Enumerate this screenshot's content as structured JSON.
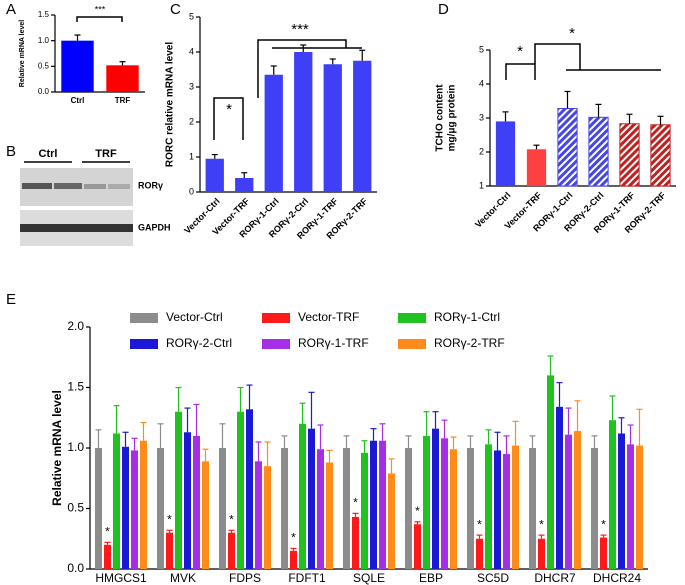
{
  "panel_labels": [
    "A",
    "B",
    "C",
    "D",
    "E"
  ],
  "blot": {
    "lanes": [
      "Ctrl",
      "TRF"
    ],
    "bands": [
      "RORγ",
      "GAPDH"
    ]
  },
  "chart_data": [
    {
      "type": "bar",
      "ylabel": "Relative mRNA level",
      "categories": [
        "Ctrl",
        "TRF"
      ],
      "values": [
        1.0,
        0.52
      ],
      "errors": [
        0.11,
        0.07
      ],
      "colors": [
        "#0000ff",
        "#ff0000"
      ],
      "ylim": [
        0,
        1.5
      ],
      "yticks": [
        {
          "value": 0,
          "label": "0.0"
        },
        {
          "value": 0.5,
          "label": "0.5"
        },
        {
          "value": 1,
          "label": "1.0"
        },
        {
          "value": 1.5,
          "label": "1.5"
        }
      ],
      "annotations": [
        "***"
      ]
    },
    {
      "type": "bar",
      "ylabel": "RORC relative mRNA level",
      "categories": [
        "Vector-Ctrl",
        "Vector-TRF",
        "RORγ-1-Ctrl",
        "RORγ-2-Ctrl",
        "RORγ-1-TRF",
        "RORγ-2-TRF"
      ],
      "values": [
        0.95,
        0.4,
        3.35,
        4.0,
        3.65,
        3.75
      ],
      "errors": [
        0.12,
        0.15,
        0.25,
        0.2,
        0.15,
        0.3
      ],
      "colors": [
        "#3f3ff5",
        "#3f3ff5",
        "#3f3ff5",
        "#3f3ff5",
        "#3f3ff5",
        "#3f3ff5"
      ],
      "ylim": [
        0,
        5
      ],
      "yticks": [
        0,
        1,
        2,
        3,
        4,
        5
      ],
      "annotations": [
        "*",
        "***"
      ]
    },
    {
      "type": "bar",
      "ylabel": [
        "TCHO content",
        "mg/μg protein"
      ],
      "categories": [
        "Vector-Ctrl",
        "Vector-TRF",
        "RORγ-1-Ctrl",
        "RORγ-2-Ctrl",
        "RORγ-1-TRF",
        "RORγ-2-TRF"
      ],
      "values": [
        2.9,
        2.08,
        3.28,
        3.02,
        2.83,
        2.8
      ],
      "errors": [
        0.28,
        0.12,
        0.5,
        0.38,
        0.28,
        0.25
      ],
      "colors": [
        "#3f3ff5",
        "#ff4040",
        "#4646e6",
        "#4646e6",
        "#c02020",
        "#c02020"
      ],
      "hatch": [
        false,
        false,
        true,
        true,
        true,
        true
      ],
      "ylim": [
        1,
        5
      ],
      "yticks": [
        1,
        2,
        3,
        4,
        5
      ],
      "annotations": [
        "*",
        "*"
      ]
    },
    {
      "type": "grouped_bar",
      "ylabel": "Relative mRNA level",
      "categories": [
        "HMGCS1",
        "MVK",
        "FDPS",
        "FDFT1",
        "SQLE",
        "EBP",
        "SC5D",
        "DHCR7",
        "DHCR24"
      ],
      "series": [
        {
          "name": "Vector-Ctrl",
          "color": "#8c8c8c",
          "values": [
            1,
            1,
            1,
            1,
            1,
            1,
            1,
            1,
            1
          ],
          "errors": [
            0.15,
            0.2,
            0.2,
            0.1,
            0.1,
            0.1,
            0.1,
            0.1,
            0.1
          ]
        },
        {
          "name": "Vector-TRF",
          "color": "#ff1a1a",
          "values": [
            0.2,
            0.3,
            0.3,
            0.15,
            0.43,
            0.37,
            0.25,
            0.25,
            0.26
          ],
          "errors": [
            0.02,
            0.02,
            0.02,
            0.02,
            0.03,
            0.02,
            0.03,
            0.03,
            0.02
          ]
        },
        {
          "name": "RORγ-1-Ctrl",
          "color": "#1fc21f",
          "values": [
            1.12,
            1.3,
            1.3,
            1.2,
            0.96,
            1.1,
            1.03,
            1.6,
            1.23
          ],
          "errors": [
            0.23,
            0.2,
            0.2,
            0.17,
            0.1,
            0.2,
            0.12,
            0.16,
            0.2
          ]
        },
        {
          "name": "RORγ-2-Ctrl",
          "color": "#1a1ad6",
          "values": [
            1.01,
            1.13,
            1.32,
            1.16,
            1.06,
            1.16,
            0.98,
            1.34,
            1.12
          ],
          "errors": [
            0.12,
            0.2,
            0.2,
            0.3,
            0.1,
            0.14,
            0.15,
            0.2,
            0.13
          ]
        },
        {
          "name": "RORγ-1-TRF",
          "color": "#a52ee6",
          "values": [
            0.98,
            1.1,
            0.89,
            0.99,
            1.06,
            1.08,
            0.95,
            1.11,
            1.03
          ],
          "errors": [
            0.1,
            0.26,
            0.16,
            0.2,
            0.14,
            0.15,
            0.15,
            0.22,
            0.16
          ]
        },
        {
          "name": "RORγ-2-TRF",
          "color": "#ff8c1a",
          "values": [
            1.06,
            0.89,
            0.85,
            0.88,
            0.79,
            0.99,
            1.02,
            1.14,
            1.02
          ],
          "errors": [
            0.15,
            0.1,
            0.2,
            0.1,
            0.12,
            0.1,
            0.2,
            0.25,
            0.3
          ]
        }
      ],
      "ylim": [
        0,
        2
      ],
      "yticks": [
        {
          "value": 0,
          "label": "0.0"
        },
        {
          "value": 0.5,
          "label": "0.5"
        },
        {
          "value": 1,
          "label": "1.0"
        },
        {
          "value": 1.5,
          "label": "1.5"
        },
        {
          "value": 2,
          "label": "2.0"
        }
      ],
      "significance": "*",
      "significant_series": 1
    }
  ]
}
